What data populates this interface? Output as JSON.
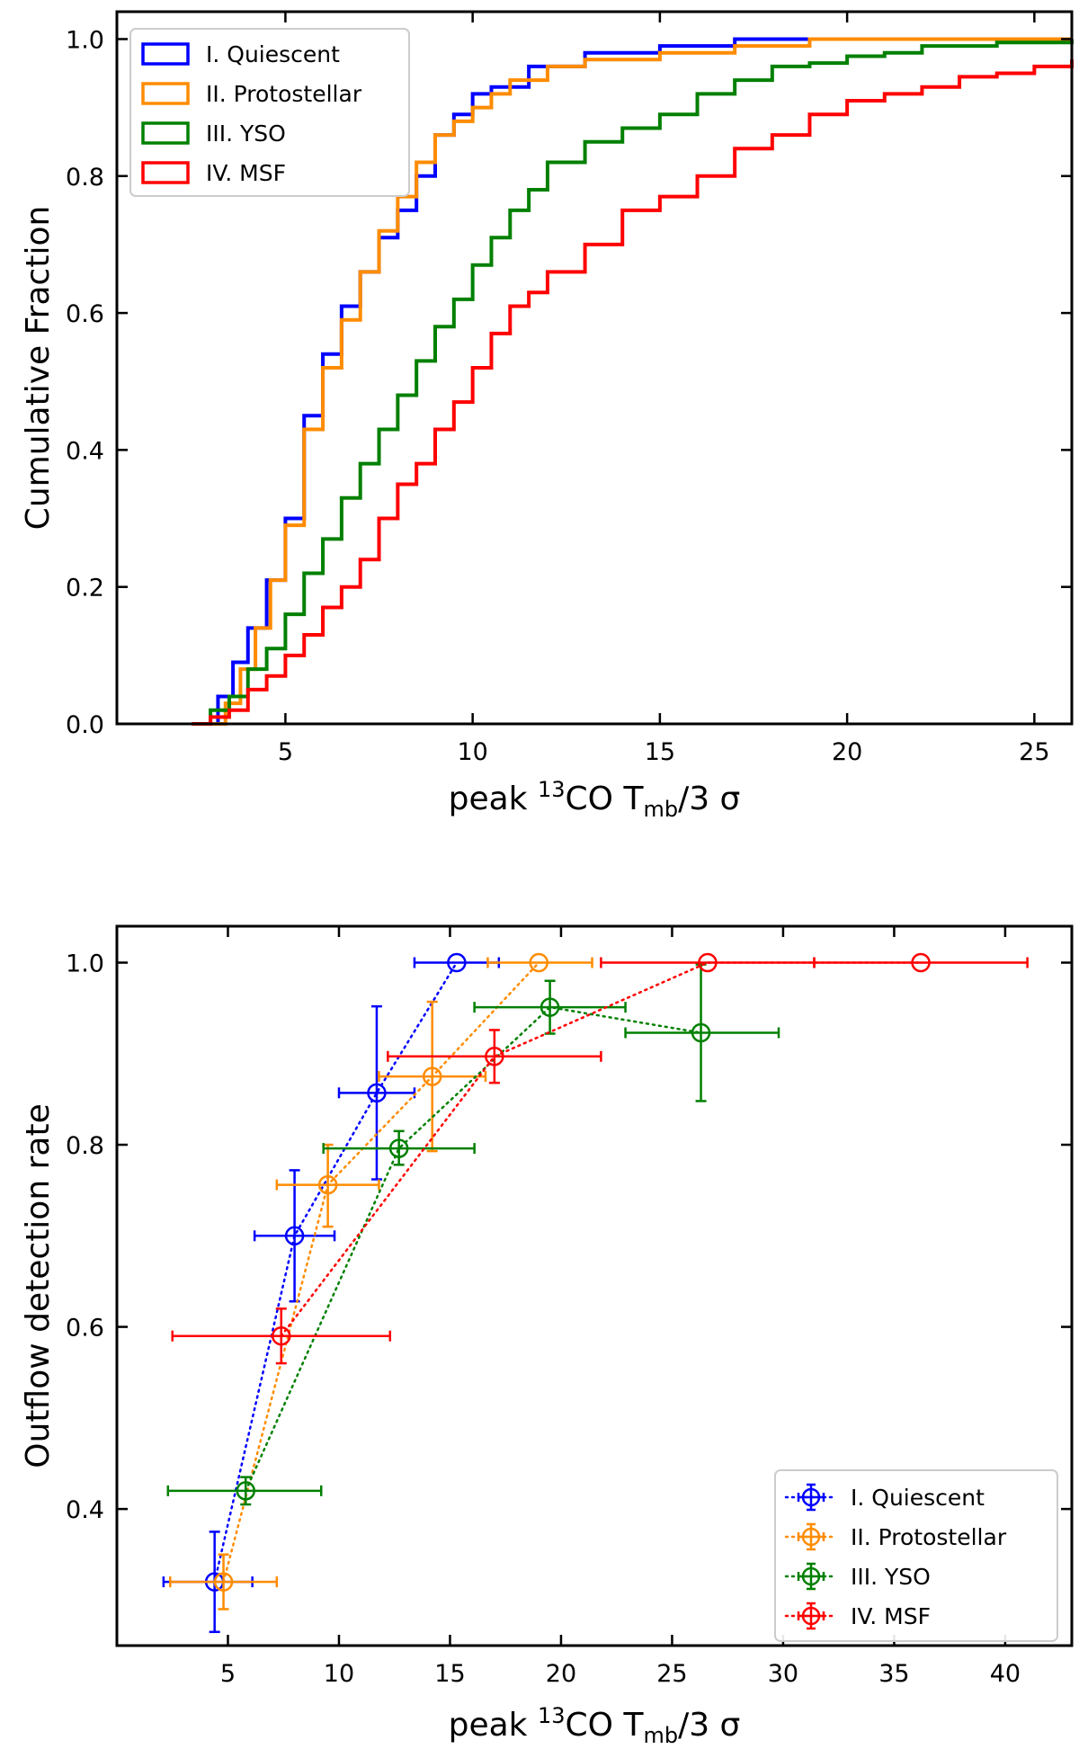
{
  "chart_data": [
    {
      "type": "line",
      "subtype": "cumulative_step",
      "xlim": [
        0.5,
        26
      ],
      "ylim": [
        0,
        1.04
      ],
      "xticks": [
        5,
        10,
        15,
        20,
        25
      ],
      "yticks": [
        0.0,
        0.2,
        0.4,
        0.6,
        0.8,
        1.0
      ],
      "xticks_text": [
        "5",
        "10",
        "15",
        "20",
        "25"
      ],
      "yticks_text": [
        "0.0",
        "0.2",
        "0.4",
        "0.6",
        "0.8",
        "1.0"
      ],
      "xlabel": {
        "pre": "peak ",
        "sup": "13",
        "mid": "CO T",
        "sub": "mb",
        "post": "/3 σ"
      },
      "ylabel": "Cumulative Fraction",
      "legend_position": "top-left",
      "series": [
        {
          "name": "I. Quiescent",
          "color": "#0000ff",
          "x": [
            2.8,
            3.2,
            3.6,
            4.0,
            4.5,
            5.0,
            5.5,
            6.0,
            6.5,
            7.0,
            7.5,
            8.0,
            8.5,
            9.0,
            9.5,
            10.0,
            10.5,
            11.5,
            13.0,
            15.0,
            17.0,
            26.0
          ],
          "y": [
            0.0,
            0.04,
            0.09,
            0.14,
            0.21,
            0.3,
            0.45,
            0.54,
            0.61,
            0.66,
            0.71,
            0.75,
            0.8,
            0.86,
            0.89,
            0.92,
            0.93,
            0.96,
            0.98,
            0.99,
            1.0,
            1.0
          ]
        },
        {
          "name": "II. Protostellar",
          "color": "#ff8c00",
          "x": [
            3.0,
            3.4,
            3.8,
            4.2,
            4.6,
            5.0,
            5.5,
            6.0,
            6.5,
            7.0,
            7.5,
            8.0,
            8.5,
            9.0,
            9.5,
            10.0,
            10.5,
            11.0,
            12.0,
            13.0,
            15.0,
            17.0,
            19.0,
            26.0
          ],
          "y": [
            0.0,
            0.03,
            0.08,
            0.14,
            0.21,
            0.29,
            0.43,
            0.52,
            0.59,
            0.66,
            0.72,
            0.77,
            0.82,
            0.86,
            0.88,
            0.9,
            0.92,
            0.94,
            0.96,
            0.97,
            0.98,
            0.99,
            1.0,
            1.0
          ]
        },
        {
          "name": "III. YSO",
          "color": "#008000",
          "x": [
            2.5,
            3.0,
            3.5,
            4.0,
            4.5,
            5.0,
            5.5,
            6.0,
            6.5,
            7.0,
            7.5,
            8.0,
            8.5,
            9.0,
            9.5,
            10.0,
            10.5,
            11.0,
            11.5,
            12.0,
            13.0,
            14.0,
            15.0,
            16.0,
            17.0,
            18.0,
            19.0,
            20.0,
            21.0,
            22.0,
            24.0,
            26.0
          ],
          "y": [
            0.0,
            0.02,
            0.04,
            0.08,
            0.11,
            0.16,
            0.22,
            0.27,
            0.33,
            0.38,
            0.43,
            0.48,
            0.53,
            0.58,
            0.62,
            0.67,
            0.71,
            0.75,
            0.78,
            0.82,
            0.85,
            0.87,
            0.89,
            0.92,
            0.94,
            0.96,
            0.965,
            0.975,
            0.98,
            0.99,
            0.995,
            1.0
          ]
        },
        {
          "name": "IV. MSF",
          "color": "#ff0000",
          "x": [
            2.5,
            3.0,
            3.5,
            4.0,
            4.5,
            5.0,
            5.5,
            6.0,
            6.5,
            7.0,
            7.5,
            8.0,
            8.5,
            9.0,
            9.5,
            10.0,
            10.5,
            11.0,
            11.5,
            12.0,
            13.0,
            14.0,
            15.0,
            16.0,
            17.0,
            18.0,
            19.0,
            20.0,
            21.0,
            22.0,
            23.0,
            24.0,
            25.0,
            26.0
          ],
          "y": [
            0.0,
            0.01,
            0.02,
            0.05,
            0.07,
            0.1,
            0.13,
            0.17,
            0.2,
            0.24,
            0.3,
            0.35,
            0.38,
            0.43,
            0.47,
            0.52,
            0.57,
            0.61,
            0.63,
            0.66,
            0.7,
            0.75,
            0.77,
            0.8,
            0.84,
            0.86,
            0.89,
            0.91,
            0.92,
            0.93,
            0.945,
            0.95,
            0.96,
            0.97
          ]
        }
      ]
    },
    {
      "type": "scatter",
      "subtype": "errorbar_dotted_lines",
      "xlim": [
        0,
        43
      ],
      "ylim": [
        0.25,
        1.04
      ],
      "xticks": [
        5,
        10,
        15,
        20,
        25,
        30,
        35,
        40
      ],
      "yticks": [
        0.4,
        0.6,
        0.8,
        1.0
      ],
      "xticks_text": [
        "5",
        "10",
        "15",
        "20",
        "25",
        "30",
        "35",
        "40"
      ],
      "yticks_text": [
        "0.4",
        "0.6",
        "0.8",
        "1.0"
      ],
      "xlabel": {
        "pre": "peak ",
        "sup": "13",
        "mid": "CO T",
        "sub": "mb",
        "post": "/3 σ"
      },
      "ylabel": "Outflow detection rate",
      "legend_position": "lower-right",
      "series": [
        {
          "name": "I. Quiescent",
          "color": "#0000ff",
          "points": [
            {
              "x": 4.4,
              "y": 0.32,
              "xerr": [
                2.1,
                6.1
              ],
              "yerr": [
                0.265,
                0.375
              ]
            },
            {
              "x": 8.0,
              "y": 0.7,
              "xerr": [
                6.2,
                9.8
              ],
              "yerr": [
                0.628,
                0.772
              ]
            },
            {
              "x": 11.7,
              "y": 0.857,
              "xerr": [
                10.0,
                13.4
              ],
              "yerr": [
                0.762,
                0.952
              ]
            },
            {
              "x": 15.3,
              "y": 1.0,
              "xerr": [
                13.4,
                17.2
              ],
              "yerr": [
                1.0,
                1.0
              ]
            }
          ]
        },
        {
          "name": "II. Protostellar",
          "color": "#ff8c00",
          "points": [
            {
              "x": 4.8,
              "y": 0.32,
              "xerr": [
                2.4,
                7.2
              ],
              "yerr": [
                0.29,
                0.35
              ]
            },
            {
              "x": 9.5,
              "y": 0.756,
              "xerr": [
                7.2,
                11.8
              ],
              "yerr": [
                0.71,
                0.8
              ]
            },
            {
              "x": 14.2,
              "y": 0.875,
              "xerr": [
                11.8,
                16.6
              ],
              "yerr": [
                0.793,
                0.957
              ]
            },
            {
              "x": 19.0,
              "y": 1.0,
              "xerr": [
                16.7,
                21.4
              ],
              "yerr": [
                1.0,
                1.0
              ]
            }
          ]
        },
        {
          "name": "III. YSO",
          "color": "#008000",
          "points": [
            {
              "x": 5.8,
              "y": 0.42,
              "xerr": [
                2.3,
                9.2
              ],
              "yerr": [
                0.405,
                0.435
              ]
            },
            {
              "x": 12.7,
              "y": 0.796,
              "xerr": [
                9.3,
                16.1
              ],
              "yerr": [
                0.778,
                0.815
              ]
            },
            {
              "x": 19.5,
              "y": 0.951,
              "xerr": [
                16.1,
                22.9
              ],
              "yerr": [
                0.922,
                0.98
              ]
            },
            {
              "x": 26.3,
              "y": 0.923,
              "xerr": [
                22.9,
                29.8
              ],
              "yerr": [
                0.848,
                0.998
              ]
            }
          ]
        },
        {
          "name": "IV. MSF",
          "color": "#ff0000",
          "points": [
            {
              "x": 7.4,
              "y": 0.59,
              "xerr": [
                2.5,
                12.3
              ],
              "yerr": [
                0.56,
                0.62
              ]
            },
            {
              "x": 17.0,
              "y": 0.897,
              "xerr": [
                12.2,
                21.8
              ],
              "yerr": [
                0.868,
                0.926
              ]
            },
            {
              "x": 26.6,
              "y": 1.0,
              "xerr": [
                21.8,
                31.4
              ],
              "yerr": [
                1.0,
                1.0
              ]
            },
            {
              "x": 36.2,
              "y": 1.0,
              "xerr": [
                31.4,
                41.0
              ],
              "yerr": [
                1.0,
                1.0
              ]
            }
          ]
        }
      ]
    }
  ]
}
